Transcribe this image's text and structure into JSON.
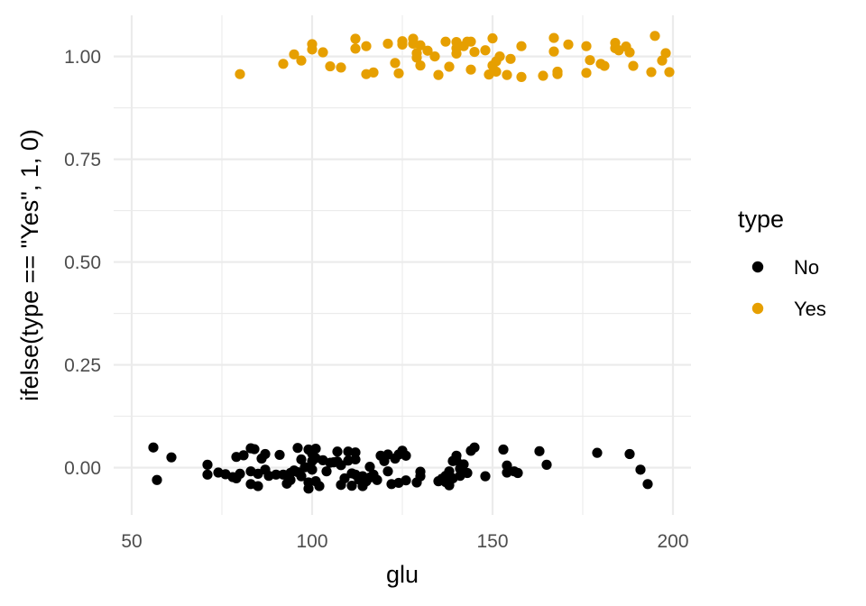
{
  "chart_data": {
    "type": "scatter",
    "xlabel": "glu",
    "ylabel": "ifelse(type == \"Yes\", 1, 0)",
    "xlim": [
      45,
      205
    ],
    "ylim": [
      -0.115,
      1.1
    ],
    "x_ticks": [
      50,
      100,
      150,
      200
    ],
    "x_tick_labels": [
      "50",
      "100",
      "150",
      "200"
    ],
    "y_ticks": [
      0,
      0.25,
      0.5,
      0.75,
      1
    ],
    "y_tick_labels": [
      "0.00",
      "0.25",
      "0.50",
      "0.75",
      "1.00"
    ],
    "grid": true,
    "legend": {
      "title": "type",
      "position": "right",
      "entries": [
        {
          "label": "No",
          "color": "#000000"
        },
        {
          "label": "Yes",
          "color": "#E69F00"
        }
      ]
    },
    "series": [
      {
        "name": "No",
        "color": "#000000",
        "points": [
          [
            56,
            0.049
          ],
          [
            57,
            -0.03
          ],
          [
            61,
            0.025
          ],
          [
            71,
            0.007
          ],
          [
            71,
            -0.017
          ],
          [
            74,
            -0.012
          ],
          [
            76,
            -0.016
          ],
          [
            78,
            -0.023
          ],
          [
            79,
            0.026
          ],
          [
            79,
            -0.026
          ],
          [
            80,
            -0.015
          ],
          [
            81,
            0.03
          ],
          [
            83,
            0.047
          ],
          [
            83,
            -0.009
          ],
          [
            83,
            -0.04
          ],
          [
            84,
            0.045
          ],
          [
            85,
            -0.015
          ],
          [
            85,
            -0.045
          ],
          [
            86,
            0.022
          ],
          [
            87,
            0.033
          ],
          [
            87,
            -0.005
          ],
          [
            88,
            -0.02
          ],
          [
            90,
            -0.017
          ],
          [
            91,
            0.031
          ],
          [
            92,
            -0.017
          ],
          [
            93,
            -0.039
          ],
          [
            94,
            -0.013
          ],
          [
            94,
            -0.03
          ],
          [
            95,
            -0.007
          ],
          [
            96,
            0.048
          ],
          [
            96,
            -0.011
          ],
          [
            97,
            0.02
          ],
          [
            97,
            -0.021
          ],
          [
            98,
            0.001
          ],
          [
            99,
            0.044
          ],
          [
            99,
            -0.036
          ],
          [
            99,
            -0.051
          ],
          [
            100,
            0.034
          ],
          [
            100,
            0.016
          ],
          [
            100,
            -0.005
          ],
          [
            101,
            0.046
          ],
          [
            101,
            0.023
          ],
          [
            101,
            -0.033
          ],
          [
            102,
            -0.045
          ],
          [
            103,
            0.018
          ],
          [
            104,
            -0.009
          ],
          [
            105,
            0.012
          ],
          [
            106,
            0.013
          ],
          [
            107,
            0.039
          ],
          [
            107,
            0.015
          ],
          [
            108,
            -0.042
          ],
          [
            108,
            0.006
          ],
          [
            109,
            -0.026
          ],
          [
            110,
            0.039
          ],
          [
            110,
            0.017
          ],
          [
            111,
            -0.014
          ],
          [
            111,
            -0.044
          ],
          [
            112,
            0.037
          ],
          [
            112,
            0.02
          ],
          [
            112,
            -0.017
          ],
          [
            113,
            -0.029
          ],
          [
            114,
            -0.021
          ],
          [
            114,
            -0.045
          ],
          [
            115,
            -0.033
          ],
          [
            116,
            0.002
          ],
          [
            116,
            -0.024
          ],
          [
            117,
            -0.017
          ],
          [
            118,
            -0.03
          ],
          [
            119,
            0.029
          ],
          [
            120,
            0.016
          ],
          [
            121,
            0.032
          ],
          [
            121,
            -0.009
          ],
          [
            122,
            -0.04
          ],
          [
            123,
            0.022
          ],
          [
            124,
            0.032
          ],
          [
            124,
            -0.037
          ],
          [
            125,
            0.041
          ],
          [
            126,
            0.029
          ],
          [
            126,
            -0.031
          ],
          [
            129,
            -0.036
          ],
          [
            130,
            -0.021
          ],
          [
            130,
            -0.01
          ],
          [
            135,
            -0.033
          ],
          [
            136,
            -0.027
          ],
          [
            137,
            -0.02
          ],
          [
            137,
            -0.035
          ],
          [
            138,
            -0.009
          ],
          [
            138,
            -0.043
          ],
          [
            139,
            0.016
          ],
          [
            139,
            -0.026
          ],
          [
            140,
            0.029
          ],
          [
            140,
            0.017
          ],
          [
            141,
            -0.003
          ],
          [
            141,
            -0.02
          ],
          [
            142,
            0.008
          ],
          [
            143,
            -0.013
          ],
          [
            144,
            0.041
          ],
          [
            145,
            0.049
          ],
          [
            148,
            -0.021
          ],
          [
            153,
            0.044
          ],
          [
            154,
            0.005
          ],
          [
            154,
            -0.012
          ],
          [
            156,
            -0.009
          ],
          [
            157,
            -0.013
          ],
          [
            163,
            0.04
          ],
          [
            165,
            0.007
          ],
          [
            179,
            0.036
          ],
          [
            188,
            0.033
          ],
          [
            191,
            -0.005
          ],
          [
            193,
            -0.04
          ]
        ]
      },
      {
        "name": "Yes",
        "color": "#E69F00",
        "points": [
          [
            80,
            0.957
          ],
          [
            92,
            0.982
          ],
          [
            95,
            1.005
          ],
          [
            97,
            0.99
          ],
          [
            100,
            1.03
          ],
          [
            100,
            1.017
          ],
          [
            103,
            1.01
          ],
          [
            105,
            0.976
          ],
          [
            108,
            0.973
          ],
          [
            112,
            1.043
          ],
          [
            112,
            1.019
          ],
          [
            115,
            1.025
          ],
          [
            115,
            0.957
          ],
          [
            117,
            0.961
          ],
          [
            121,
            1.031
          ],
          [
            123,
            0.984
          ],
          [
            124,
            0.959
          ],
          [
            125,
            1.037
          ],
          [
            125,
            1.029
          ],
          [
            128,
            1.031
          ],
          [
            128,
            1.043
          ],
          [
            129,
            1.008
          ],
          [
            129,
            0.997
          ],
          [
            130,
            1.027
          ],
          [
            130,
            0.978
          ],
          [
            132,
            1.014
          ],
          [
            134,
            1.0
          ],
          [
            135,
            0.955
          ],
          [
            137,
            1.036
          ],
          [
            138,
            0.975
          ],
          [
            140,
            1.035
          ],
          [
            140,
            1.02
          ],
          [
            140,
            1.007
          ],
          [
            142,
            1.025
          ],
          [
            143,
            1.036
          ],
          [
            144,
            1.036
          ],
          [
            144,
            0.968
          ],
          [
            145,
            1.011
          ],
          [
            148,
            1.015
          ],
          [
            149,
            0.956
          ],
          [
            150,
            1.044
          ],
          [
            150,
            0.978
          ],
          [
            151,
            0.963
          ],
          [
            151,
            0.988
          ],
          [
            152,
            1.0
          ],
          [
            154,
            0.955
          ],
          [
            155,
            0.994
          ],
          [
            158,
            0.95
          ],
          [
            158,
            1.025
          ],
          [
            164,
            0.953
          ],
          [
            167,
            1.045
          ],
          [
            167,
            1.012
          ],
          [
            168,
            0.957
          ],
          [
            168,
            0.963
          ],
          [
            171,
            1.029
          ],
          [
            176,
            1.025
          ],
          [
            176,
            0.96
          ],
          [
            177,
            0.991
          ],
          [
            180,
            0.982
          ],
          [
            181,
            0.977
          ],
          [
            184,
            1.033
          ],
          [
            184,
            1.02
          ],
          [
            185,
            1.015
          ],
          [
            187,
            1.024
          ],
          [
            188,
            1.01
          ],
          [
            189,
            0.977
          ],
          [
            194,
            0.962
          ],
          [
            195,
            1.05
          ],
          [
            197,
            0.99
          ],
          [
            198,
            1.008
          ],
          [
            199,
            0.962
          ]
        ]
      }
    ]
  }
}
